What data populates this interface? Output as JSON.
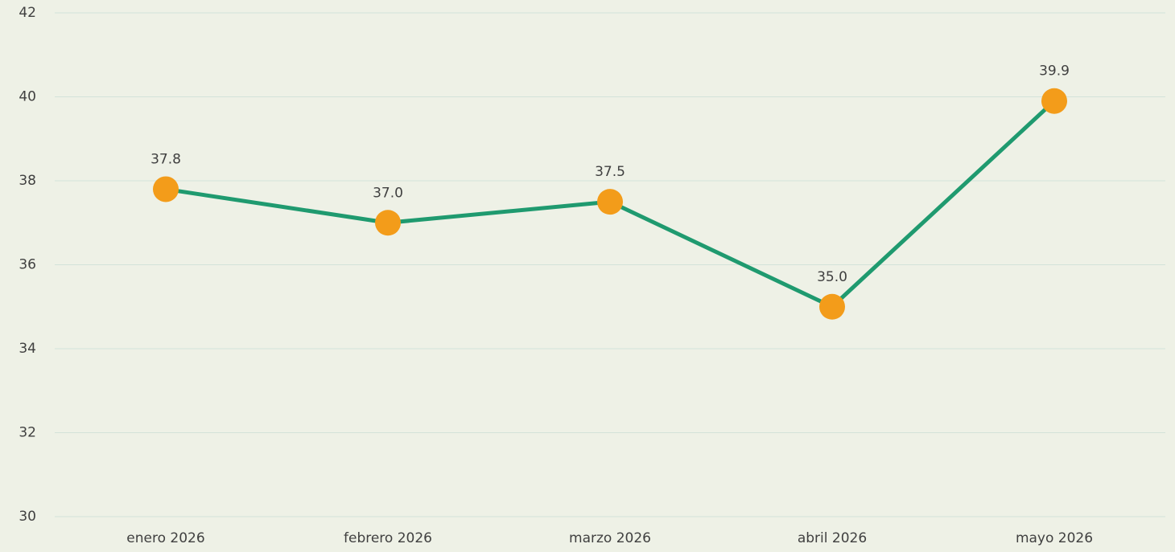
{
  "chart_data": {
    "type": "line",
    "categories": [
      "enero 2026",
      "febrero 2026",
      "marzo 2026",
      "abril 2026",
      "mayo 2026"
    ],
    "series": [
      {
        "color": "#1f9a6f",
        "marker_color": "#f39c1a",
        "values": [
          37.8,
          37.0,
          37.5,
          35.0,
          39.9
        ],
        "value_labels": [
          "37.8",
          "37.0",
          "37.5",
          "35.0",
          "39.9"
        ]
      }
    ],
    "ylim": [
      30,
      42
    ],
    "yticks": [
      30,
      32,
      34,
      36,
      38,
      40,
      42
    ],
    "grid": true
  }
}
